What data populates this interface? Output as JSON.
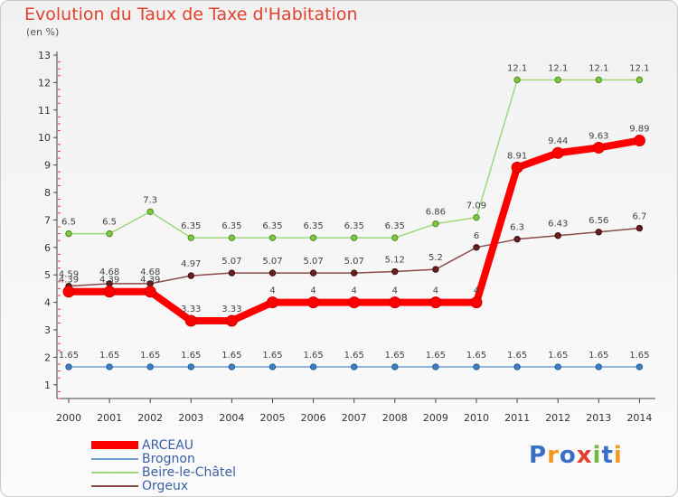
{
  "chart_data": {
    "type": "line",
    "title": "Evolution du Taux de Taxe d'Habitation",
    "subtitle": "(en %)",
    "x": [
      "2000",
      "2001",
      "2002",
      "2003",
      "2004",
      "2005",
      "2006",
      "2007",
      "2008",
      "2009",
      "2010",
      "2011",
      "2012",
      "2013",
      "2014"
    ],
    "ylim": [
      0.5,
      13
    ],
    "yticks": [
      1,
      2,
      3,
      4,
      5,
      6,
      7,
      8,
      9,
      10,
      11,
      12,
      13
    ],
    "grid": false,
    "legend_position": "bottom-left",
    "series": [
      {
        "name": "ARCEAU",
        "color": "#ff0000",
        "values": [
          4.39,
          4.39,
          4.39,
          3.33,
          3.33,
          4,
          4,
          4,
          4,
          4,
          4,
          8.91,
          9.44,
          9.63,
          9.89
        ]
      },
      {
        "name": "Brognon",
        "color": "#6fa1d6",
        "values": [
          1.65,
          1.65,
          1.65,
          1.65,
          1.65,
          1.65,
          1.65,
          1.65,
          1.65,
          1.65,
          1.65,
          1.65,
          1.65,
          1.65,
          1.65
        ]
      },
      {
        "name": "Beire-le-Châtel",
        "color": "#9ed87a",
        "values": [
          6.5,
          6.5,
          7.3,
          6.35,
          6.35,
          6.35,
          6.35,
          6.35,
          6.35,
          6.86,
          7.09,
          12.1,
          12.1,
          12.1,
          12.1
        ]
      },
      {
        "name": "Orgeux",
        "color": "#8a4a4a",
        "values": [
          4.59,
          4.68,
          4.68,
          4.97,
          5.07,
          5.07,
          5.07,
          5.07,
          5.12,
          5.2,
          6,
          6.3,
          6.43,
          6.56,
          6.7
        ]
      }
    ]
  },
  "brand": {
    "letters": [
      "P",
      "r",
      "o",
      "x",
      "i",
      "t",
      "i"
    ]
  }
}
